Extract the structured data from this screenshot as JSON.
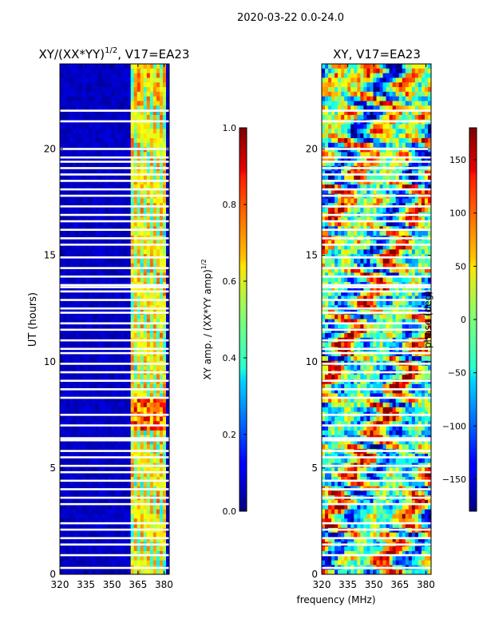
{
  "suptitle": "2020-03-22 0.0-24.0",
  "chart_data": [
    {
      "type": "heatmap",
      "title_main": "XY/(XX*YY)",
      "title_sup": "1/2",
      "title_tail": ", V17=EA23",
      "xlabel": "",
      "ylabel": "UT (hours)",
      "xlim": [
        320,
        383
      ],
      "ylim": [
        0,
        24
      ],
      "xticks": [
        320,
        335,
        350,
        365,
        380
      ],
      "yticks": [
        0,
        5,
        10,
        15,
        20
      ],
      "active_band_mhz": [
        360,
        382
      ],
      "flagged_hours": [
        0.3,
        0.9,
        1.4,
        1.7,
        2.1,
        2.4,
        3.3,
        3.6,
        4.0,
        4.4,
        4.8,
        5.1,
        5.5,
        5.8,
        6.3,
        6.4,
        7.0,
        7.5,
        8.3,
        8.7,
        9.1,
        9.5,
        9.9,
        10.4,
        10.6,
        11.0,
        11.5,
        11.8,
        12.3,
        12.5,
        12.9,
        13.3,
        13.5,
        13.6,
        14.0,
        14.4,
        14.9,
        15.5,
        15.8,
        16.2,
        16.6,
        16.9,
        17.3,
        17.8,
        18.1,
        18.5,
        18.8,
        19.1,
        19.4,
        19.6,
        20.0,
        21.3,
        21.8
      ],
      "colorbar": {
        "label_main": "XY amp. / (XX*YY amp)",
        "label_sup": "1/2",
        "range": [
          0.0,
          1.0
        ],
        "ticks": [
          "0.0",
          "0.2",
          "0.4",
          "0.6",
          "0.8",
          "1.0"
        ]
      }
    },
    {
      "type": "heatmap",
      "title": "XY, V17=EA23",
      "xlabel": "frequency (MHz)",
      "ylabel": "",
      "xlim": [
        320,
        383
      ],
      "ylim": [
        0,
        24
      ],
      "xticks": [
        320,
        335,
        350,
        365,
        380
      ],
      "yticks": [
        0,
        5,
        10,
        15,
        20
      ],
      "flagged_hours": [
        0.3,
        0.9,
        1.4,
        1.7,
        2.1,
        2.4,
        3.3,
        3.6,
        4.0,
        4.4,
        4.8,
        5.1,
        5.5,
        5.8,
        6.3,
        6.4,
        7.0,
        7.5,
        8.3,
        8.7,
        9.1,
        9.5,
        9.9,
        10.4,
        10.6,
        11.0,
        11.5,
        11.8,
        12.3,
        12.5,
        12.9,
        13.3,
        13.5,
        13.6,
        14.0,
        14.4,
        14.9,
        15.5,
        15.8,
        16.2,
        16.6,
        16.9,
        17.3,
        17.8,
        18.1,
        18.5,
        18.8,
        19.1,
        19.4,
        19.6,
        20.0,
        21.3,
        21.8
      ],
      "colorbar": {
        "label": "phase (deg)",
        "range": [
          -180,
          180
        ],
        "ticks": [
          -150,
          -100,
          -50,
          0,
          50,
          100,
          150
        ]
      }
    }
  ]
}
